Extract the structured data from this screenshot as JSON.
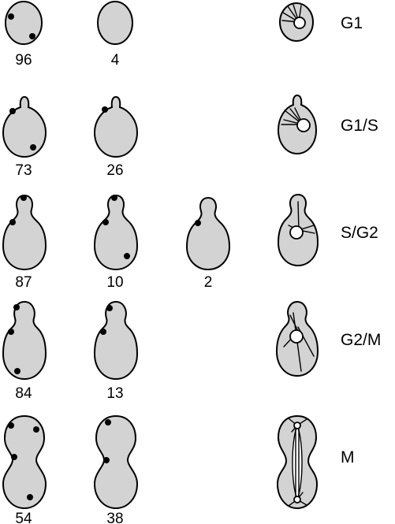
{
  "rows": [
    {
      "phase": "G1",
      "counts": [
        "96",
        "4"
      ]
    },
    {
      "phase": "G1/S",
      "counts": [
        "73",
        "26"
      ]
    },
    {
      "phase": "S/G2",
      "counts": [
        "87",
        "10",
        "2"
      ]
    },
    {
      "phase": "G2/M",
      "counts": [
        "84",
        "13"
      ]
    },
    {
      "phase": "M",
      "counts": [
        "54",
        "38"
      ]
    }
  ],
  "colors": {
    "cell_fill": "#d3d3d3",
    "outline": "#000000",
    "nucleus_fill": "#ffffff"
  }
}
